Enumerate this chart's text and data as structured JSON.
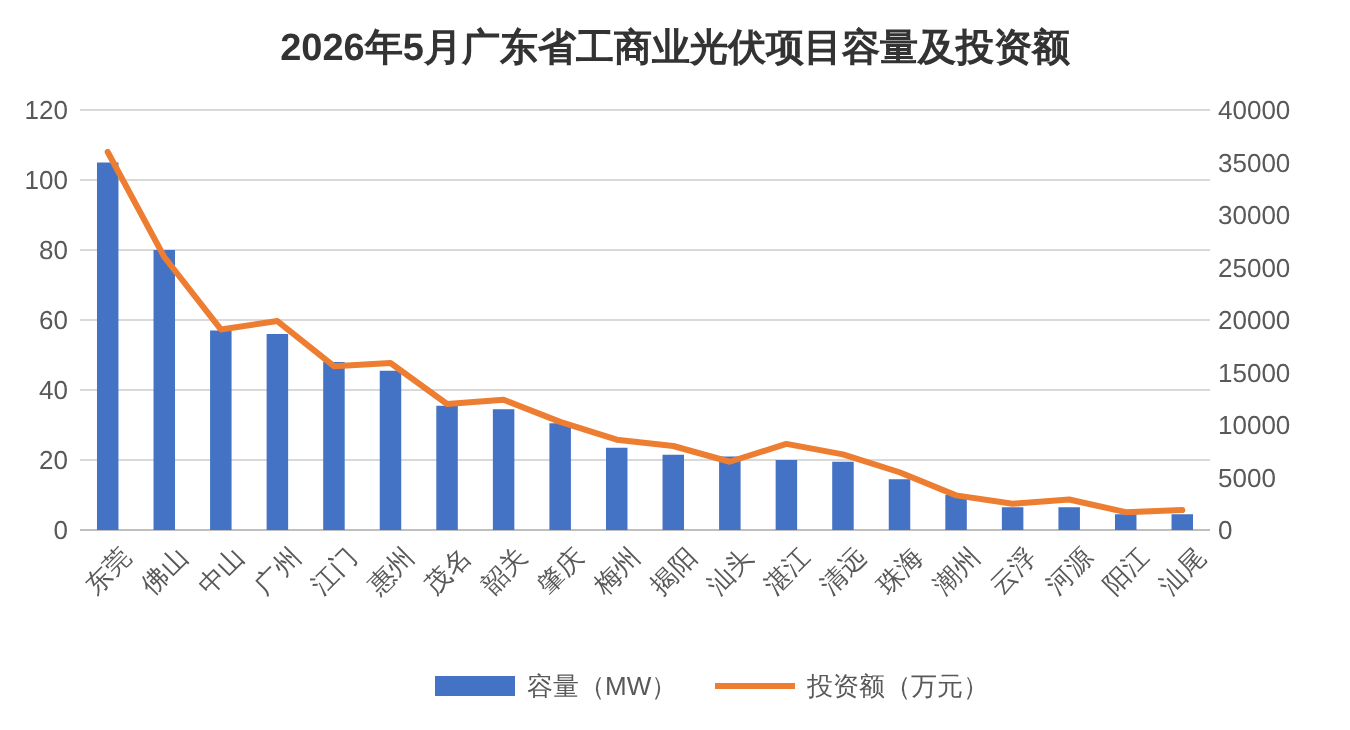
{
  "chart_data": {
    "type": "bar",
    "title": "2026年5月广东省工商业光伏项目容量及投资额",
    "categories": [
      "东莞",
      "佛山",
      "中山",
      "广州",
      "江门",
      "惠州",
      "茂名",
      "韶关",
      "肇庆",
      "梅州",
      "揭阳",
      "汕头",
      "湛江",
      "清远",
      "珠海",
      "潮州",
      "云浮",
      "河源",
      "阳江",
      "汕尾"
    ],
    "series": [
      {
        "name": "容量（MW）",
        "color": "#4472c4",
        "values": [
          105,
          80,
          57,
          56,
          48,
          45.5,
          35.5,
          34.5,
          30.5,
          23.5,
          21.5,
          21,
          20,
          19.5,
          14.5,
          10,
          6.5,
          6.5,
          4.5,
          4.5
        ]
      },
      {
        "name": "投资额（万元）",
        "type": "line",
        "axis": "y2",
        "color": "#ed7d31",
        "values": [
          36000,
          26000,
          19100,
          19900,
          15600,
          15900,
          12000,
          12400,
          10300,
          8600,
          8000,
          6500,
          8200,
          7200,
          5500,
          3300,
          2500,
          2900,
          1700,
          1900
        ]
      }
    ],
    "ylim": [
      0,
      120
    ],
    "yticks": [
      0,
      20,
      40,
      60,
      80,
      100,
      120
    ],
    "y2lim": [
      0,
      40000
    ],
    "y2ticks": [
      0,
      5000,
      10000,
      15000,
      20000,
      25000,
      30000,
      35000,
      40000
    ],
    "grid": "y",
    "legend": "bottom",
    "marker": "none",
    "line_style": "solid"
  }
}
